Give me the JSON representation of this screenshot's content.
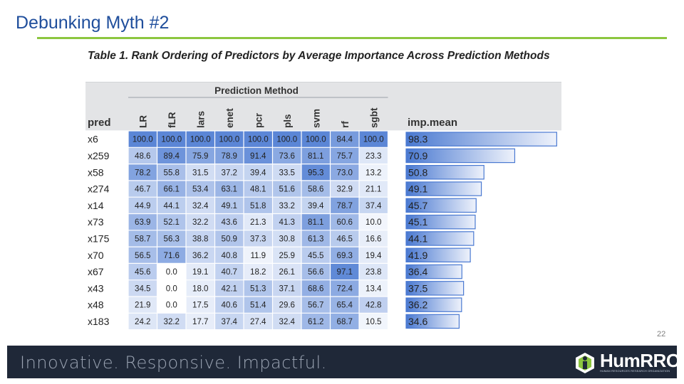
{
  "slide": {
    "title": "Debunking Myth #2",
    "page_number": "22"
  },
  "table": {
    "caption": "Table 1.  Rank Ordering of Predictors by Average Importance Across Prediction Methods",
    "group_header": "Prediction Method",
    "pred_header": "pred",
    "mean_header": "imp.mean",
    "methods": [
      "LR",
      "fLR",
      "lars",
      "enet",
      "pcr",
      "pls",
      "svm",
      "rf",
      "sgbt"
    ],
    "rows": [
      {
        "pred": "x6",
        "values": [
          "100.0",
          "100.0",
          "100.0",
          "100.0",
          "100.0",
          "100.0",
          "100.0",
          "84.4",
          "100.0"
        ],
        "mean": "98.3",
        "mean_value": 98.3
      },
      {
        "pred": "x259",
        "values": [
          "48.6",
          "89.4",
          "75.9",
          "78.9",
          "91.4",
          "73.6",
          "81.1",
          "75.7",
          "23.3"
        ],
        "mean": "70.9",
        "mean_value": 70.9
      },
      {
        "pred": "x58",
        "values": [
          "78.2",
          "55.8",
          "31.5",
          "37.2",
          "39.4",
          "33.5",
          "95.3",
          "73.0",
          "13.2"
        ],
        "mean": "50.8",
        "mean_value": 50.8
      },
      {
        "pred": "x274",
        "values": [
          "46.7",
          "66.1",
          "53.4",
          "63.1",
          "48.1",
          "51.6",
          "58.6",
          "32.9",
          "21.1"
        ],
        "mean": "49.1",
        "mean_value": 49.1
      },
      {
        "pred": "x14",
        "values": [
          "44.9",
          "44.1",
          "32.4",
          "49.1",
          "51.8",
          "33.2",
          "39.4",
          "78.7",
          "37.4"
        ],
        "mean": "45.7",
        "mean_value": 45.7
      },
      {
        "pred": "x73",
        "values": [
          "63.9",
          "52.1",
          "32.2",
          "43.6",
          "21.3",
          "41.3",
          "81.1",
          "60.6",
          "10.0"
        ],
        "mean": "45.1",
        "mean_value": 45.1
      },
      {
        "pred": "x175",
        "values": [
          "58.7",
          "56.3",
          "38.8",
          "50.9",
          "37.3",
          "30.8",
          "61.3",
          "46.5",
          "16.6"
        ],
        "mean": "44.1",
        "mean_value": 44.1
      },
      {
        "pred": "x70",
        "values": [
          "56.5",
          "71.6",
          "36.2",
          "40.8",
          "11.9",
          "25.9",
          "45.5",
          "69.3",
          "19.4"
        ],
        "mean": "41.9",
        "mean_value": 41.9
      },
      {
        "pred": "x67",
        "values": [
          "45.6",
          "0.0",
          "19.1",
          "40.7",
          "18.2",
          "26.1",
          "56.6",
          "97.1",
          "23.8"
        ],
        "mean": "36.4",
        "mean_value": 36.4
      },
      {
        "pred": "x43",
        "values": [
          "34.5",
          "0.0",
          "18.0",
          "42.1",
          "51.3",
          "37.1",
          "68.6",
          "72.4",
          "13.4"
        ],
        "mean": "37.5",
        "mean_value": 37.5
      },
      {
        "pred": "x48",
        "values": [
          "21.9",
          "0.0",
          "17.5",
          "40.6",
          "51.4",
          "29.6",
          "56.7",
          "65.4",
          "42.8"
        ],
        "mean": "36.2",
        "mean_value": 36.2
      },
      {
        "pred": "x183",
        "values": [
          "24.2",
          "32.2",
          "17.7",
          "37.4",
          "27.4",
          "32.4",
          "61.2",
          "68.7",
          "10.5"
        ],
        "mean": "34.6",
        "mean_value": 34.6
      }
    ]
  },
  "footer": {
    "tagline": "Innovative.  Responsive.  Impactful.",
    "logo_text": "HumRRO.",
    "logo_subtext": "HUMAN RESOURCES RESEARCH ORGANIZATION"
  },
  "colors": {
    "title": "#1f4e9c",
    "rule": "#8cc63f",
    "footer_bg": "#1f2838",
    "heat_high": "#5b86d6",
    "heat_low": "#ffffff",
    "bar_blue": "#4a79d1"
  }
}
